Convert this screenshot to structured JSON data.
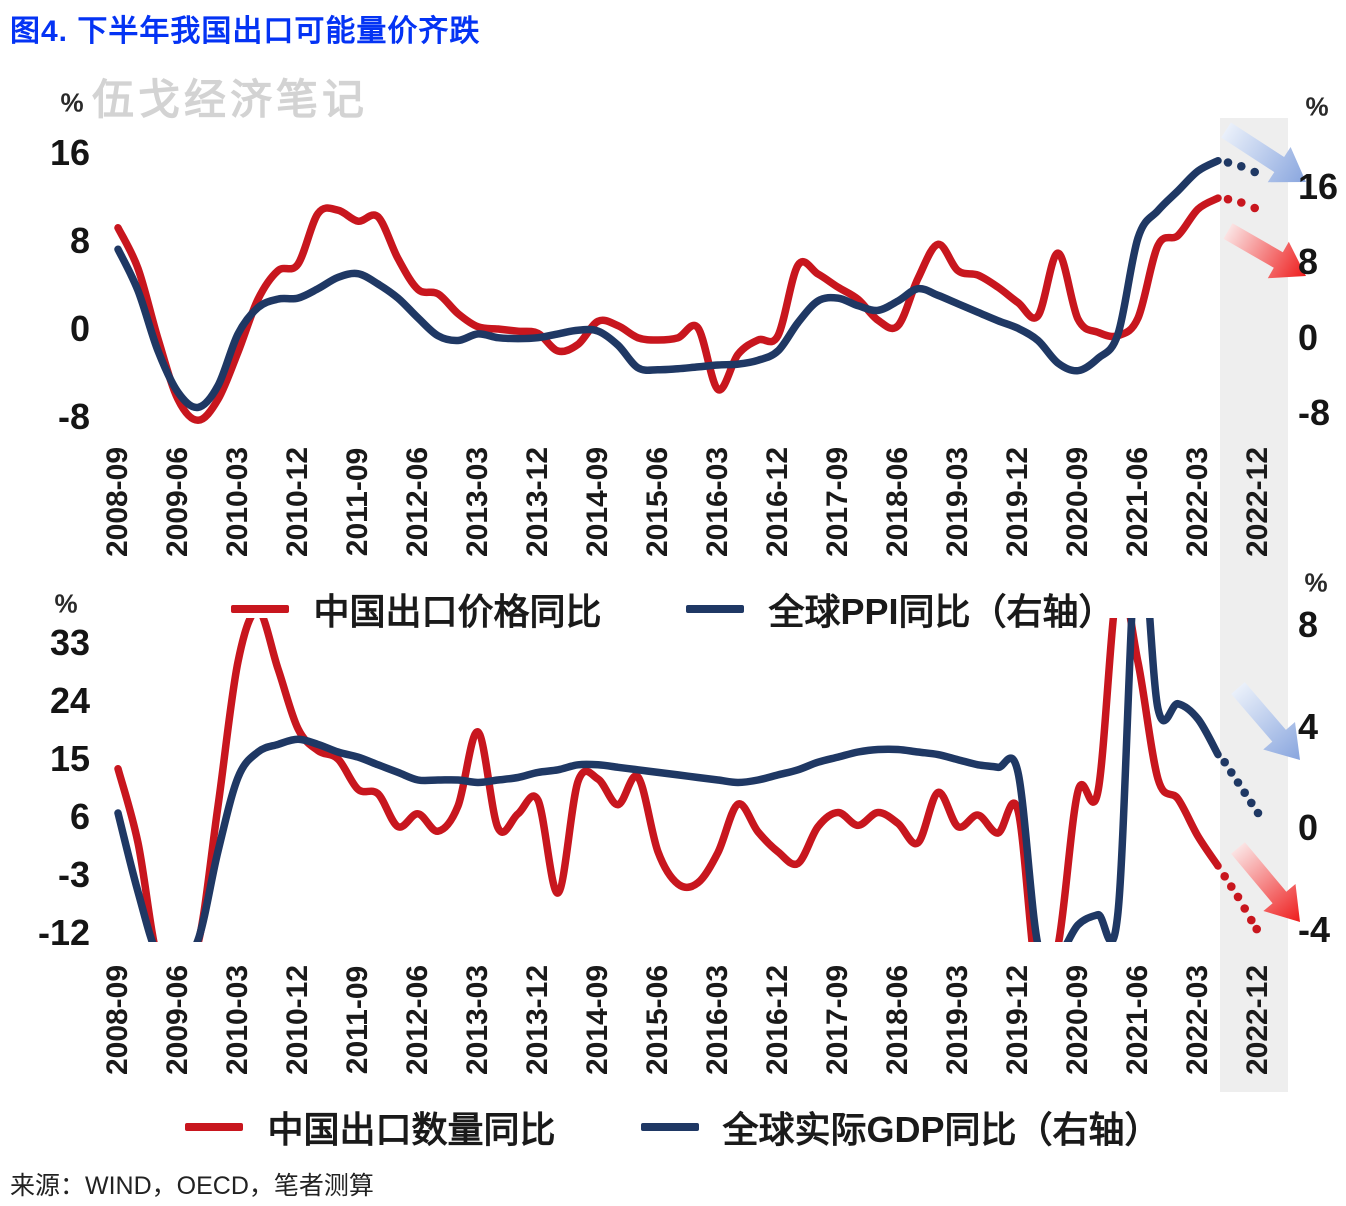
{
  "title": "图4. 下半年我国出口可能量价齐跌",
  "watermark": "伍戈经济笔记",
  "source": "来源：WIND，OECD，笔者测算",
  "colors": {
    "red": "#C8161E",
    "navy": "#1F3864",
    "title_blue": "#0433F4",
    "band": "#EEEEEE",
    "watermark": "#D3D3D3",
    "tick_text": "#151515",
    "arrow_blue_tail": "#EAF0FA",
    "arrow_blue_head": "#88A5DE",
    "arrow_red_tail": "#FBE3E3",
    "arrow_red_head": "#EE1C1C"
  },
  "chart_data": [
    {
      "type": "line",
      "position": "top",
      "x_start": "2008-09",
      "x_step_months": 3,
      "x_tick_labels": [
        "2008-09",
        "2009-06",
        "2010-03",
        "2010-12",
        "2011-09",
        "2012-06",
        "2013-03",
        "2013-12",
        "2014-09",
        "2015-06",
        "2016-03",
        "2016-12",
        "2017-09",
        "2018-06",
        "2019-03",
        "2019-12",
        "2020-09",
        "2021-06",
        "2022-03",
        "2022-12"
      ],
      "left_axis": {
        "unit": "%",
        "ticks": [
          16,
          8,
          0,
          -8
        ],
        "range": [
          -9.0,
          19.2
        ]
      },
      "right_axis": {
        "unit": "%",
        "ticks": [
          16,
          8,
          0,
          -8
        ],
        "range": [
          -9.7,
          23.3
        ]
      },
      "grid": "off",
      "legend_position": "bottom",
      "forecast_band_label": "2022-12",
      "series": [
        {
          "name": "中国出口价格同比",
          "axis": "left",
          "color_key": "red",
          "values": [
            9.2,
            5.5,
            -0.9,
            -6.4,
            -8.3,
            -6.4,
            -2.1,
            2.7,
            5.3,
            5.9,
            10.5,
            10.8,
            9.8,
            10.2,
            6.4,
            3.6,
            3.2,
            1.4,
            0.2,
            0.0,
            -0.2,
            -0.4,
            -2.0,
            -1.4,
            0.7,
            0.3,
            -0.8,
            -1.0,
            -0.8,
            0.1,
            -5.5,
            -2.3,
            -1.0,
            -0.6,
            5.8,
            5.0,
            3.8,
            2.7,
            0.8,
            0.3,
            4.6,
            7.7,
            5.3,
            4.9,
            3.8,
            2.4,
            1.2,
            6.9,
            0.9,
            -0.3,
            -0.6,
            1.0,
            7.6,
            8.5,
            10.9,
            11.9
          ],
          "forecast_dots": [
            [
              166.5,
              11.8
            ],
            [
              168.5,
              11.5
            ],
            [
              170.5,
              11.0
            ]
          ]
        },
        {
          "name": "全球PPI同比（右轴）",
          "axis": "right",
          "color_key": "navy",
          "values": [
            9.4,
            5.0,
            -1.4,
            -5.8,
            -7.4,
            -5.1,
            0.4,
            3.2,
            4.1,
            4.2,
            5.2,
            6.4,
            6.8,
            5.7,
            4.2,
            2.1,
            0.2,
            -0.3,
            0.4,
            0.0,
            -0.1,
            0.0,
            0.4,
            0.8,
            0.7,
            -0.8,
            -3.2,
            -3.4,
            -3.3,
            -3.1,
            -2.9,
            -2.8,
            -2.4,
            -1.4,
            1.6,
            3.9,
            4.2,
            3.4,
            2.9,
            3.9,
            5.2,
            4.5,
            3.6,
            2.7,
            1.8,
            1.0,
            -0.3,
            -2.7,
            -3.5,
            -2.2,
            0.4,
            10.6,
            13.5,
            15.6,
            17.7,
            18.8
          ],
          "forecast_dots": [
            [
              166.5,
              18.6
            ],
            [
              168.5,
              18.2
            ],
            [
              170.5,
              17.6
            ]
          ]
        }
      ],
      "annotations": [
        {
          "type": "arrow",
          "color": "blue",
          "meaning": "forecast decline of global PPI"
        },
        {
          "type": "arrow",
          "color": "red",
          "meaning": "forecast decline of China export price"
        }
      ]
    },
    {
      "type": "line",
      "position": "bottom",
      "x_start": "2008-09",
      "x_step_months": 3,
      "x_tick_labels": [
        "2008-09",
        "2009-06",
        "2010-03",
        "2010-12",
        "2011-09",
        "2012-06",
        "2013-03",
        "2013-12",
        "2014-09",
        "2015-06",
        "2016-03",
        "2016-12",
        "2017-09",
        "2018-06",
        "2019-03",
        "2019-12",
        "2020-09",
        "2021-06",
        "2022-03",
        "2022-12"
      ],
      "left_axis": {
        "unit": "%",
        "ticks": [
          33,
          24,
          15,
          6,
          -3,
          -12
        ],
        "range": [
          -13.4,
          36.9
        ]
      },
      "right_axis": {
        "unit": "%",
        "ticks": [
          8,
          4,
          0,
          -4
        ],
        "range": [
          -4.5,
          8.3
        ]
      },
      "grid": "off",
      "legend_position": "bottom",
      "forecast_band_label": "2022-12",
      "series": [
        {
          "name": "中国出口数量同比",
          "axis": "left",
          "color_key": "red",
          "values": [
            13.5,
            2.0,
            -16.0,
            -15.0,
            -13.6,
            7.7,
            30.1,
            38.0,
            29.0,
            19.7,
            16.3,
            15.0,
            10.3,
            9.6,
            4.5,
            6.5,
            3.8,
            7.7,
            19.2,
            4.3,
            6.5,
            8.6,
            -5.8,
            11.5,
            11.9,
            7.9,
            12.2,
            0.6,
            -4.4,
            -4.2,
            0.5,
            8.0,
            3.7,
            0.6,
            -1.2,
            4.5,
            6.7,
            4.7,
            6.7,
            5.0,
            2.0,
            9.8,
            4.5,
            6.3,
            3.5,
            7.0,
            -20.0,
            -14.0,
            10.0,
            10.0,
            42.0,
            30.0,
            11.9,
            8.8,
            3.0,
            -1.6
          ],
          "forecast_dots": [
            [
              166,
              -3.2
            ],
            [
              167,
              -4.8
            ],
            [
              168,
              -6.4
            ],
            [
              169,
              -8.2
            ],
            [
              170,
              -10.0
            ],
            [
              170.8,
              -11.4
            ]
          ]
        },
        {
          "name": "全球实际GDP同比（右轴）",
          "axis": "right",
          "color_key": "navy",
          "values": [
            0.6,
            -2.5,
            -5.0,
            -5.2,
            -4.4,
            -0.9,
            2.0,
            3.0,
            3.3,
            3.5,
            3.3,
            3.0,
            2.8,
            2.5,
            2.2,
            1.9,
            1.9,
            1.9,
            1.8,
            1.9,
            2.0,
            2.2,
            2.3,
            2.5,
            2.5,
            2.4,
            2.3,
            2.2,
            2.1,
            2.0,
            1.9,
            1.8,
            1.9,
            2.1,
            2.3,
            2.6,
            2.8,
            3.0,
            3.1,
            3.1,
            3.0,
            2.9,
            2.7,
            2.5,
            2.4,
            2.2,
            -4.6,
            -5.0,
            -3.8,
            -3.4,
            -3.3,
            12.0,
            4.7,
            4.9,
            4.3,
            2.9
          ],
          "forecast_dots": [
            [
              166,
              2.6
            ],
            [
              167,
              2.2
            ],
            [
              168,
              1.8
            ],
            [
              169,
              1.4
            ],
            [
              170,
              1.0
            ],
            [
              171,
              0.6
            ]
          ]
        }
      ],
      "annotations": [
        {
          "type": "arrow",
          "color": "blue",
          "meaning": "forecast decline of global real GDP"
        },
        {
          "type": "arrow",
          "color": "red",
          "meaning": "forecast decline of China export quantity"
        }
      ]
    }
  ]
}
